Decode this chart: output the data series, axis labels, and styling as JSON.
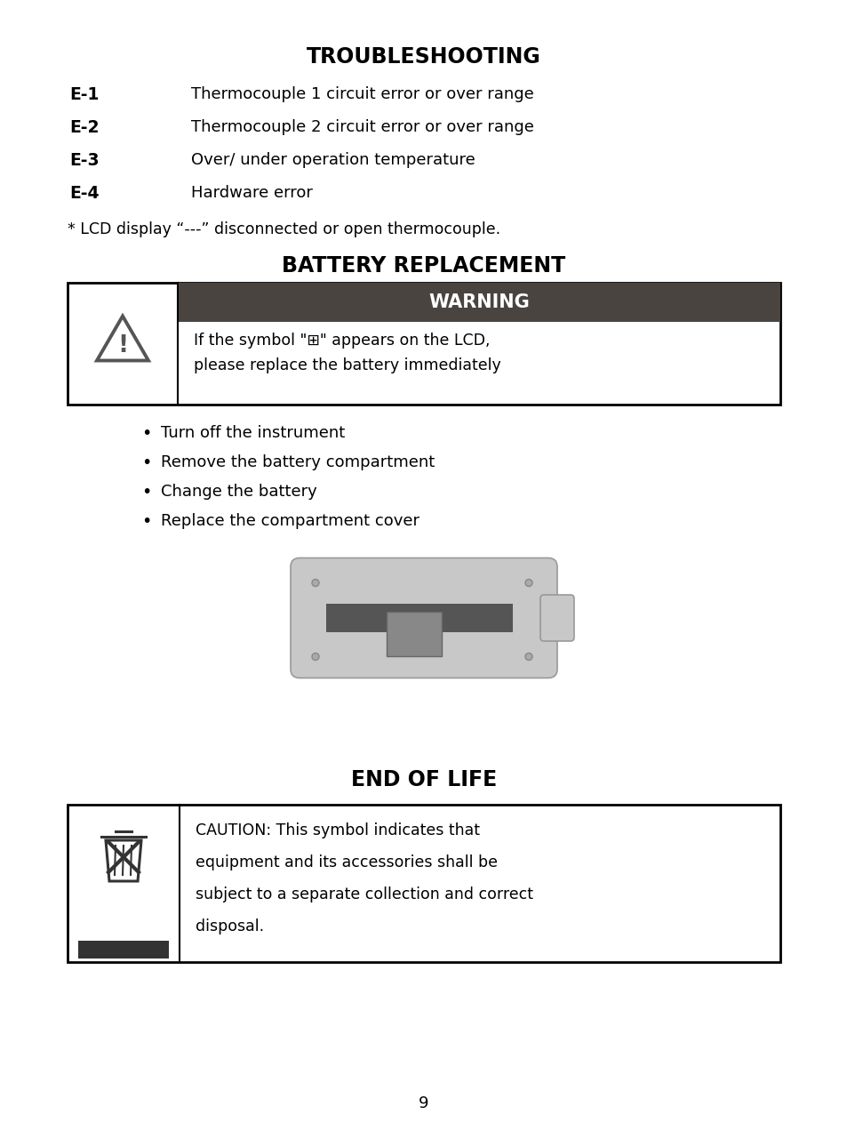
{
  "bg_color": "#ffffff",
  "title_troubleshooting": "TROUBLESHOOTING",
  "error_codes": [
    {
      "code": "E-1",
      "desc": "Thermocouple 1 circuit error or over range"
    },
    {
      "code": "E-2",
      "desc": "Thermocouple 2 circuit error or over range"
    },
    {
      "code": "E-3",
      "desc": "Over/ under operation temperature"
    },
    {
      "code": "E-4",
      "desc": "Hardware error"
    }
  ],
  "lcd_note": "* LCD display “---” disconnected or open thermocouple.",
  "title_battery": "BATTERY REPLACEMENT",
  "warning_header": "WARNING",
  "warning_header_bg": "#4a4440",
  "warning_text_line1": "If the symbol \"⊞\" appears on the LCD,",
  "warning_text_line2": "please replace the battery immediately",
  "bullet_items": [
    "Turn off the instrument",
    "Remove the battery compartment",
    "Change the battery",
    "Replace the compartment cover"
  ],
  "title_end_of_life": "END OF LIFE",
  "caution_lines": [
    "CAUTION: This symbol indicates that",
    "equipment and its accessories shall be",
    "subject to a separate collection and correct",
    "disposal."
  ],
  "page_number": "9"
}
